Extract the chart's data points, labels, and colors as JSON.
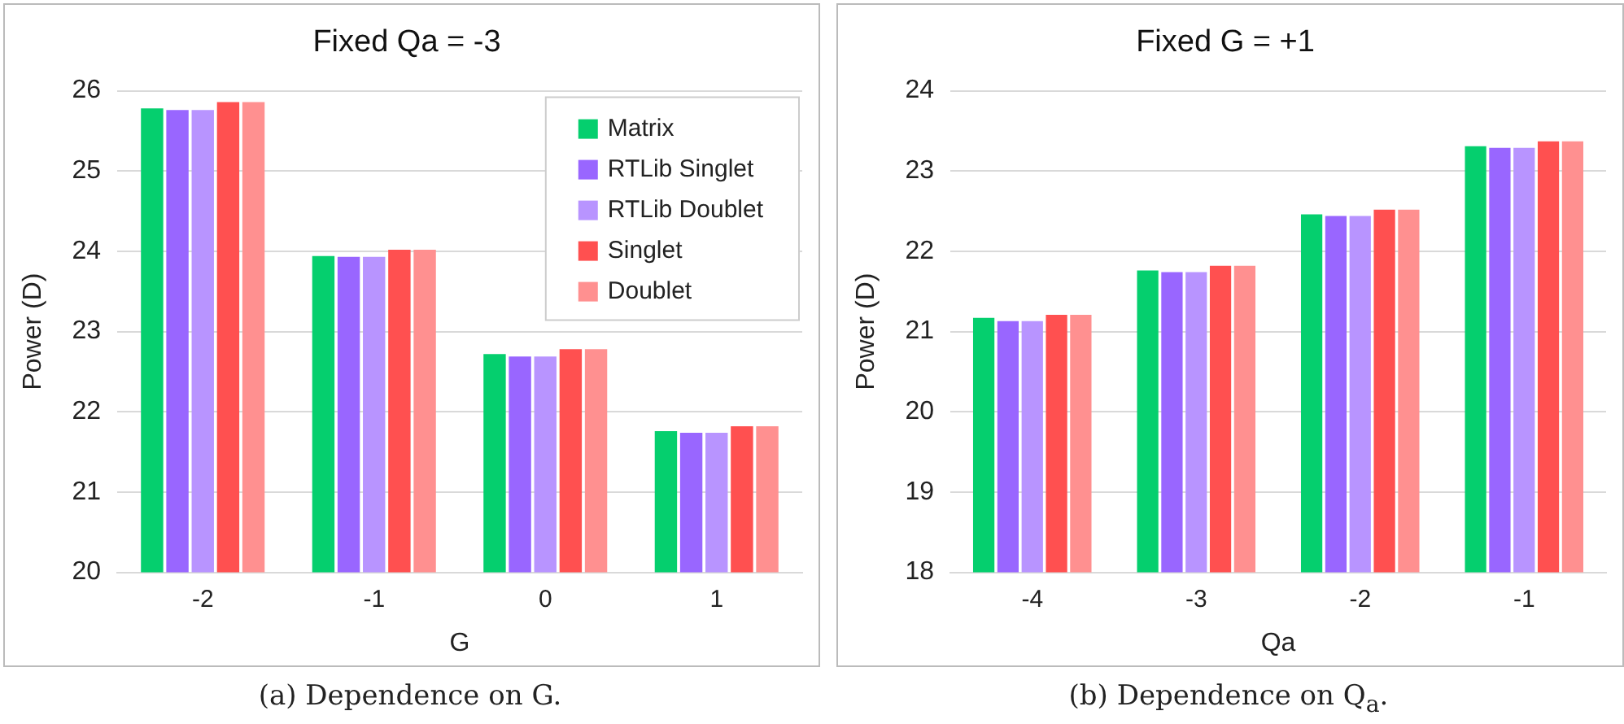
{
  "chart_data": [
    {
      "type": "bar",
      "title": "Fixed Qa = -3",
      "xlabel": "G",
      "ylabel": "Power (D)",
      "categories": [
        "-2",
        "-1",
        "0",
        "1"
      ],
      "ylim": [
        20,
        26
      ],
      "yticks": [
        20,
        21,
        22,
        23,
        24,
        25,
        26
      ],
      "grid": "y",
      "legend": "top right",
      "annotations": [
        "(a) Dependence on G."
      ],
      "series": [
        {
          "name": "Matrix",
          "color": "#05cf6e",
          "values": [
            25.78,
            23.94,
            22.72,
            21.76
          ]
        },
        {
          "name": "RTLib Singlet",
          "color": "#9966ff",
          "values": [
            25.76,
            23.93,
            22.69,
            21.74
          ]
        },
        {
          "name": "RTLib Doublet",
          "color": "#b894ff",
          "values": [
            25.76,
            23.93,
            22.69,
            21.74
          ]
        },
        {
          "name": "Singlet",
          "color": "#ff5050",
          "values": [
            25.86,
            24.02,
            22.78,
            21.82
          ]
        },
        {
          "name": "Doublet",
          "color": "#ff9090",
          "values": [
            25.86,
            24.02,
            22.78,
            21.82
          ]
        }
      ]
    },
    {
      "type": "bar",
      "title": "Fixed G = +1",
      "xlabel": "Qa",
      "ylabel": "Power (D)",
      "categories": [
        "-4",
        "-3",
        "-2",
        "-1"
      ],
      "ylim": [
        18,
        24
      ],
      "yticks": [
        18,
        19,
        20,
        21,
        22,
        23,
        24
      ],
      "grid": "y",
      "annotations": [
        "(b) Dependence on Q$_{a}$."
      ],
      "series": [
        {
          "color": "#05cf6e",
          "values": [
            21.17,
            21.76,
            22.46,
            23.31
          ]
        },
        {
          "color": "#9966ff",
          "values": [
            21.13,
            21.74,
            22.44,
            23.29
          ]
        },
        {
          "color": "#b894ff",
          "values": [
            21.13,
            21.74,
            22.44,
            23.29
          ]
        },
        {
          "color": "#ff5050",
          "values": [
            21.21,
            21.82,
            22.52,
            23.37
          ]
        },
        {
          "color": "#ff9090",
          "values": [
            21.21,
            21.82,
            22.52,
            23.37
          ]
        }
      ]
    }
  ]
}
